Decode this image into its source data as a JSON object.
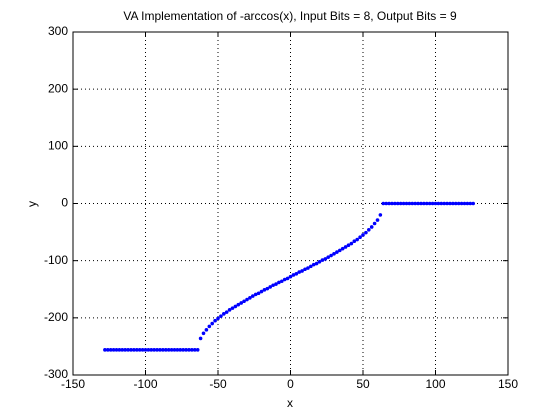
{
  "chart_data": {
    "type": "scatter",
    "title": "VA Implementation of -arccos(x), Input Bits = 8, Output Bits = 9",
    "x_label": "x",
    "y_label": "y",
    "xlim": [
      -150,
      150
    ],
    "ylim": [
      -300,
      300
    ],
    "xticks": [
      -150,
      -100,
      -50,
      0,
      50,
      100,
      150
    ],
    "yticks": [
      -300,
      -200,
      -100,
      0,
      100,
      200,
      300
    ],
    "grid": true,
    "series": [
      {
        "color": "#0000ff",
        "x": [
          -128,
          -126,
          -124,
          -122,
          -120,
          -118,
          -116,
          -114,
          -112,
          -110,
          -108,
          -106,
          -104,
          -102,
          -100,
          -98,
          -96,
          -94,
          -92,
          -90,
          -88,
          -86,
          -84,
          -82,
          -80,
          -78,
          -76,
          -74,
          -72,
          -70,
          -68,
          -66,
          -64,
          -62,
          -60,
          -58,
          -56,
          -54,
          -52,
          -50,
          -48,
          -46,
          -44,
          -42,
          -40,
          -38,
          -36,
          -34,
          -32,
          -30,
          -28,
          -26,
          -24,
          -22,
          -20,
          -18,
          -16,
          -14,
          -12,
          -10,
          -8,
          -6,
          -4,
          -2,
          0,
          2,
          4,
          6,
          8,
          10,
          12,
          14,
          16,
          18,
          20,
          22,
          24,
          26,
          28,
          30,
          32,
          34,
          36,
          38,
          40,
          42,
          44,
          46,
          48,
          50,
          52,
          54,
          56,
          58,
          60,
          62,
          64,
          66,
          68,
          70,
          72,
          74,
          76,
          78,
          80,
          82,
          84,
          86,
          88,
          90,
          92,
          94,
          96,
          98,
          100,
          102,
          104,
          106,
          108,
          110,
          112,
          114,
          116,
          118,
          120,
          122,
          124,
          126
        ],
        "values": [
          -256,
          -256,
          -256,
          -256,
          -256,
          -256,
          -256,
          -256,
          -256,
          -256,
          -256,
          -256,
          -256,
          -256,
          -256,
          -256,
          -256,
          -256,
          -256,
          -256,
          -256,
          -256,
          -256,
          -256,
          -256,
          -256,
          -256,
          -256,
          -256,
          -256,
          -256,
          -256,
          -256,
          -236,
          -227,
          -221,
          -215,
          -210,
          -205,
          -201,
          -197,
          -193,
          -190,
          -186,
          -183,
          -180,
          -177,
          -174,
          -171,
          -168,
          -165,
          -162,
          -159,
          -157,
          -154,
          -151,
          -149,
          -146,
          -143,
          -141,
          -138,
          -136,
          -133,
          -131,
          -128,
          -125,
          -123,
          -120,
          -118,
          -115,
          -113,
          -110,
          -107,
          -105,
          -102,
          -99,
          -97,
          -94,
          -91,
          -88,
          -85,
          -82,
          -79,
          -76,
          -73,
          -70,
          -66,
          -63,
          -59,
          -55,
          -51,
          -46,
          -41,
          -35,
          -29,
          -20,
          0,
          0,
          0,
          0,
          0,
          0,
          0,
          0,
          0,
          0,
          0,
          0,
          0,
          0,
          0,
          0,
          0,
          0,
          0,
          0,
          0,
          0,
          0,
          0,
          0,
          0,
          0,
          0,
          0,
          0,
          0,
          0
        ]
      }
    ]
  }
}
